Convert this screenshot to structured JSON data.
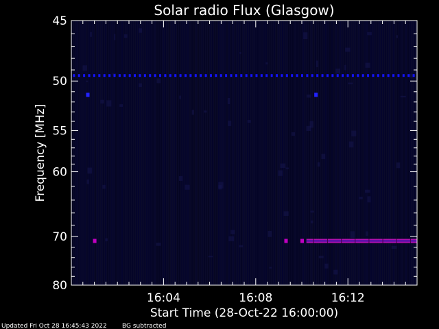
{
  "chart_data": {
    "type": "heatmap",
    "title": "Solar radio Flux (Glasgow)",
    "xlabel": "Start Time (28-Oct-22 16:00:00)",
    "ylabel": "Frequency [MHz]",
    "xlim": [
      "16:00",
      "16:15"
    ],
    "ylim": [
      45,
      80
    ],
    "x_tick_labels": [
      "16:04",
      "16:08",
      "16:12"
    ],
    "x_tick_values": [
      4,
      8,
      12
    ],
    "y_tick_labels": [
      "45",
      "50",
      "55",
      "60",
      "70",
      "80"
    ],
    "y_tick_values": [
      45,
      50,
      55,
      60,
      70,
      80
    ],
    "y_scale": "reciprocal",
    "grid": false,
    "background_color": "#0a0a2a",
    "signals": [
      {
        "type": "dotted-line",
        "frequency_mhz": 49.5,
        "color": "#1414ff",
        "start_min": 0.1,
        "end_min": 15.0
      },
      {
        "type": "spot",
        "frequency_mhz": 51.3,
        "color": "#2222ff",
        "minute": 0.7
      },
      {
        "type": "spot",
        "frequency_mhz": 51.3,
        "color": "#2222ff",
        "minute": 10.6
      },
      {
        "type": "spot",
        "frequency_mhz": 70.8,
        "color": "#c000c0",
        "minute": 1.0
      },
      {
        "type": "spot",
        "frequency_mhz": 70.8,
        "color": "#c000c0",
        "minute": 9.3
      },
      {
        "type": "spot",
        "frequency_mhz": 70.8,
        "color": "#c000c0",
        "minute": 10.0
      },
      {
        "type": "band",
        "frequency_mhz": 70.8,
        "color": "#b010b0",
        "start_min": 10.2,
        "end_min": 15.0
      }
    ]
  },
  "footer": {
    "updated": "Updated Fri Oct 28 16:45:43 2022",
    "note": "BG subtracted"
  },
  "colors": {
    "text": "#ffffff",
    "axis": "#ffffff"
  }
}
